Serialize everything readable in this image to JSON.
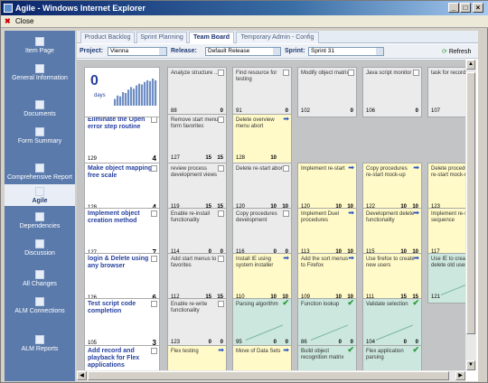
{
  "window": {
    "title": "Agile - Windows Internet Explorer"
  },
  "menu": {
    "close_label": "Close"
  },
  "sidebar": {
    "items": [
      {
        "label": "Item Page",
        "icon": "page-icon"
      },
      {
        "label": "General Information",
        "icon": "info-icon"
      },
      {
        "label": "Documents",
        "icon": "documents-icon"
      },
      {
        "label": "Form Summary",
        "icon": "form-icon"
      },
      {
        "label": "Comprehensive Report",
        "icon": "report-icon"
      },
      {
        "label": "Agile",
        "icon": "agile-icon"
      },
      {
        "label": "Dependencies",
        "icon": "dependencies-icon"
      },
      {
        "label": "Discussion",
        "icon": "discussion-icon"
      },
      {
        "label": "All Changes",
        "icon": "changes-icon"
      },
      {
        "label": "ALM Connections",
        "icon": "connections-icon"
      },
      {
        "label": "ALM Reports",
        "icon": "reports-icon"
      }
    ]
  },
  "tabs": [
    "Product Backlog",
    "Sprint Planning",
    "Team Board",
    "Temporary Admin - Config"
  ],
  "filters": {
    "project_label": "Project:",
    "project": "Vienna",
    "release_label": "Release:",
    "release": "Default Release",
    "sprint_label": "Sprint:",
    "sprint": "Sprint 31",
    "refresh": "Refresh"
  },
  "burndown": {
    "days": "0",
    "days_label": "days",
    "values": [
      8,
      12,
      11,
      16,
      15,
      19,
      22,
      20,
      24,
      26,
      25,
      28,
      30,
      29,
      32,
      30
    ]
  },
  "header_cards": [
    {
      "title": "Analyze structure ...",
      "id": "88",
      "rem": "0"
    },
    {
      "title": "Find resource for testing",
      "id": "91",
      "rem": "0"
    },
    {
      "title": "Modify object matrix",
      "id": "102",
      "rem": "0"
    },
    {
      "title": "Java script monitor",
      "id": "106",
      "rem": "0"
    },
    {
      "title": "task for recording",
      "id": "107",
      "rem": ""
    }
  ],
  "rows": [
    {
      "title": "Eliminate the Open error step routine",
      "id": "129",
      "points": "4",
      "cards": [
        {
          "title": "Remove start menu form favorites",
          "id": "127",
          "hours": "15",
          "rem": "15",
          "color": "g",
          "mark": "box"
        },
        {
          "title": "Delete overview menu abort",
          "id": "128",
          "hours": "10",
          "rem": "",
          "color": "y",
          "mark": "arrow"
        }
      ]
    },
    {
      "title": "Make object mapping free scale",
      "id": "128",
      "points": "4",
      "cards": [
        {
          "title": "review process development views",
          "id": "119",
          "hours": "15",
          "rem": "15",
          "color": "g",
          "mark": "box"
        },
        {
          "title": "Delete re-start abort",
          "id": "120",
          "hours": "10",
          "rem": "10",
          "color": "g",
          "mark": "box"
        },
        {
          "title": "Implement re-start",
          "id": "120",
          "hours": "10",
          "rem": "10",
          "color": "y",
          "mark": "arrow"
        },
        {
          "title": "Copy procedures re-start mock-up",
          "id": "122",
          "hours": "10",
          "rem": "10",
          "color": "y",
          "mark": "arrow"
        },
        {
          "title": "Delete procedures re-start mock-up",
          "id": "123",
          "hours": "10",
          "rem": "",
          "color": "y",
          "mark": "arrow"
        }
      ]
    },
    {
      "title": "Implement object creation method",
      "id": "127",
      "points": "7",
      "cards": [
        {
          "title": "Enable re-install functionality",
          "id": "114",
          "hours": "0",
          "rem": "0",
          "color": "g",
          "mark": "box"
        },
        {
          "title": "Copy procedures development",
          "id": "116",
          "hours": "0",
          "rem": "0",
          "color": "g",
          "mark": "box"
        },
        {
          "title": "Implement Duel procedures",
          "id": "113",
          "hours": "10",
          "rem": "10",
          "color": "y",
          "mark": "arrow"
        },
        {
          "title": "Development delete functionality",
          "id": "115",
          "hours": "10",
          "rem": "10",
          "color": "y",
          "mark": "arrow"
        },
        {
          "title": "Implement re-start sequence",
          "id": "117",
          "hours": "",
          "rem": "",
          "color": "y",
          "mark": "arrow"
        }
      ]
    },
    {
      "title": "login & Delete using any browser",
      "id": "126",
      "points": "6",
      "cards": [
        {
          "title": "Add start menus to favorites",
          "id": "112",
          "hours": "15",
          "rem": "15",
          "color": "g",
          "mark": "box"
        },
        {
          "title": "Install IE using system installer",
          "id": "110",
          "hours": "10",
          "rem": "10",
          "color": "y",
          "mark": "arrow"
        },
        {
          "title": "Add the sort menus to Firefox",
          "id": "109",
          "hours": "10",
          "rem": "10",
          "color": "y",
          "mark": "arrow"
        },
        {
          "title": "Use firefox to create new users",
          "id": "111",
          "hours": "15",
          "rem": "15",
          "color": "y",
          "mark": "arrow"
        },
        {
          "title": "Use IE to create delete old users",
          "id": "121",
          "hours": "",
          "rem": "",
          "color": "t",
          "mark": "check"
        }
      ]
    },
    {
      "title": "Test script code completion",
      "id": "105",
      "points": "3",
      "cards": [
        {
          "title": "Enable re-write functionality",
          "id": "123",
          "hours": "0",
          "rem": "0",
          "color": "g",
          "mark": "box"
        },
        {
          "title": "Parsing algorithm",
          "id": "95",
          "hours": "0",
          "rem": "0",
          "color": "t",
          "mark": "check"
        },
        {
          "title": "Function lookup",
          "id": "86",
          "hours": "0",
          "rem": "0",
          "color": "t",
          "mark": "check"
        },
        {
          "title": "Validate selection",
          "id": "104",
          "hours": "0",
          "rem": "0",
          "color": "t",
          "mark": "check"
        }
      ]
    },
    {
      "title": "Add record and playback for Flex applications",
      "id": "",
      "points": "",
      "cards": [
        {
          "title": "Flex testing",
          "id": "",
          "hours": "",
          "rem": "",
          "color": "y",
          "mark": "arrow"
        },
        {
          "title": "Move of Data Sets",
          "id": "",
          "hours": "",
          "rem": "",
          "color": "y",
          "mark": "arrow"
        },
        {
          "title": "Build object recognition matrix",
          "id": "",
          "hours": "",
          "rem": "",
          "color": "t",
          "mark": "check"
        },
        {
          "title": "Flex application parsing",
          "id": "",
          "hours": "",
          "rem": "",
          "color": "t",
          "mark": "check"
        }
      ]
    }
  ]
}
